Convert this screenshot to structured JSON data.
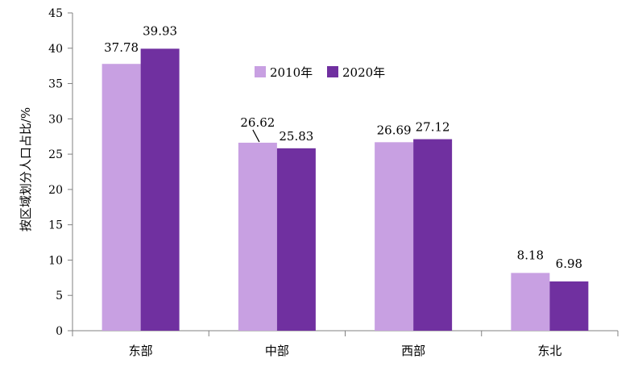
{
  "chart_data": {
    "type": "bar",
    "title": "",
    "xlabel": "",
    "ylabel": "按区域划分人口占比/%",
    "ylim": [
      0,
      45
    ],
    "yticks": [
      0,
      5,
      10,
      15,
      20,
      25,
      30,
      35,
      40,
      45
    ],
    "categories": [
      "东部",
      "中部",
      "西部",
      "东北"
    ],
    "series": [
      {
        "name": "2010年",
        "values": [
          37.78,
          26.62,
          26.69,
          8.18
        ],
        "labels": [
          "37.78",
          "26.62",
          "26.69",
          "8.18"
        ],
        "color": "#c8a0e2"
      },
      {
        "name": "2020年",
        "values": [
          39.93,
          25.83,
          27.12,
          6.98
        ],
        "labels": [
          "39.93",
          "25.83",
          "27.12",
          "6.98"
        ],
        "color": "#7030a0"
      }
    ],
    "grid": false,
    "legend_position": "top-center"
  }
}
